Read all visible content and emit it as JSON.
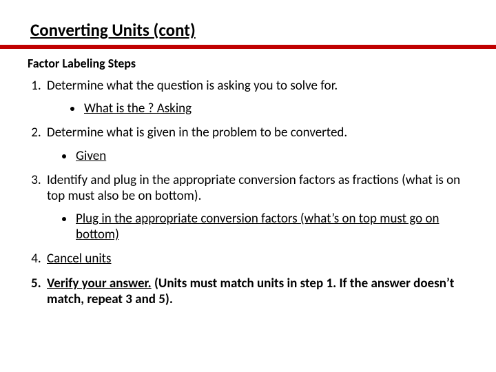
{
  "slide": {
    "title": "Converting Units (cont)",
    "ruleColor": "#c00000",
    "subheading": "Factor Labeling Steps",
    "steps": [
      {
        "text": "Determine what the question is asking you to solve for.",
        "sub": {
          "text": "What is the ? Asking",
          "underline": true,
          "indent": "more"
        }
      },
      {
        "text": "Determine what is given in the problem to be converted.",
        "sub": {
          "text": "Given",
          "underline": true,
          "indent": "normal"
        }
      },
      {
        "text": "Identify and plug in the appropriate conversion factors as fractions (what is on top must also be on bottom).",
        "sub": {
          "text": "Plug in the appropriate conversion factors (what’s on top must go on bottom)",
          "underline": true,
          "indent": "normal"
        }
      },
      {
        "text": "Cancel units",
        "underline": true
      },
      {
        "prefix": "Verify your answer.",
        "suffix": " (Units must match units in step 1.  If the answer doesn’t match, repeat 3 and 5).",
        "bold": true,
        "underlinePrefix": true
      }
    ]
  }
}
